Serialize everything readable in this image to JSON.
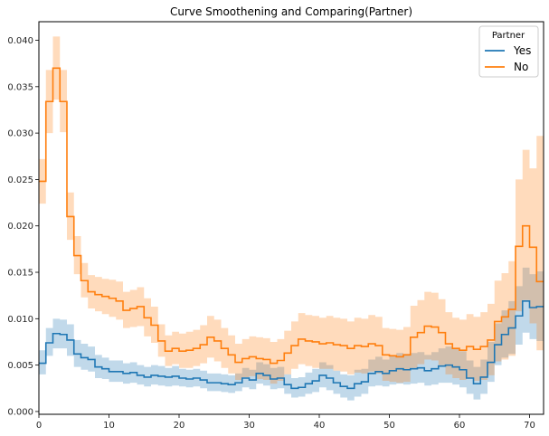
{
  "chart_data": {
    "type": "line",
    "title": "Curve Smoothening and Comparing(Partner)",
    "xlabel": "",
    "ylabel": "",
    "xlim": [
      0,
      72
    ],
    "ylim": [
      -0.0003,
      0.042
    ],
    "xticks": [
      0,
      10,
      20,
      30,
      40,
      50,
      60,
      70
    ],
    "yticks": [
      0.0,
      0.005,
      0.01,
      0.015,
      0.02,
      0.025,
      0.03,
      0.035,
      0.04
    ],
    "ytick_labels": [
      "0.000",
      "0.005",
      "0.010",
      "0.015",
      "0.020",
      "0.025",
      "0.030",
      "0.035",
      "0.040"
    ],
    "grid": false,
    "legend": {
      "title": "Partner",
      "placement": "top-right"
    },
    "series": [
      {
        "name": "Yes",
        "color": "#1f77b4",
        "x": [
          0,
          1,
          2,
          3,
          4,
          5,
          6,
          7,
          8,
          9,
          10,
          11,
          12,
          13,
          14,
          15,
          16,
          17,
          18,
          19,
          20,
          21,
          22,
          23,
          24,
          25,
          26,
          27,
          28,
          29,
          30,
          31,
          32,
          33,
          34,
          35,
          36,
          37,
          38,
          39,
          40,
          41,
          42,
          43,
          44,
          45,
          46,
          47,
          48,
          49,
          50,
          51,
          52,
          53,
          54,
          55,
          56,
          57,
          58,
          59,
          60,
          61,
          62,
          63,
          64,
          65,
          66,
          67,
          68,
          69,
          70,
          71,
          72
        ],
        "values": [
          0.0052,
          0.0074,
          0.0084,
          0.0083,
          0.0077,
          0.0062,
          0.0058,
          0.0056,
          0.0048,
          0.0046,
          0.0043,
          0.0043,
          0.0041,
          0.0042,
          0.0039,
          0.0037,
          0.0039,
          0.0038,
          0.0037,
          0.0038,
          0.0036,
          0.0035,
          0.0036,
          0.0034,
          0.0031,
          0.0031,
          0.003,
          0.0029,
          0.0031,
          0.0036,
          0.0034,
          0.0041,
          0.0039,
          0.0035,
          0.0036,
          0.0029,
          0.0025,
          0.0026,
          0.003,
          0.0033,
          0.0039,
          0.0036,
          0.0031,
          0.0027,
          0.0025,
          0.003,
          0.0032,
          0.0041,
          0.0043,
          0.0041,
          0.0044,
          0.0046,
          0.0045,
          0.0046,
          0.0047,
          0.0044,
          0.0046,
          0.0049,
          0.005,
          0.0048,
          0.0045,
          0.0036,
          0.003,
          0.0037,
          0.0053,
          0.0072,
          0.0083,
          0.009,
          0.0103,
          0.0119,
          0.0112,
          0.0113,
          0.0113
        ],
        "lower": [
          0.004,
          0.006,
          0.0068,
          0.0068,
          0.006,
          0.0048,
          0.0045,
          0.0043,
          0.0036,
          0.0035,
          0.0032,
          0.0032,
          0.003,
          0.0031,
          0.0029,
          0.0027,
          0.0029,
          0.0028,
          0.0027,
          0.0028,
          0.0027,
          0.0026,
          0.0027,
          0.0025,
          0.0022,
          0.0022,
          0.0021,
          0.002,
          0.0022,
          0.0026,
          0.0024,
          0.003,
          0.0028,
          0.0024,
          0.0025,
          0.0019,
          0.0015,
          0.0016,
          0.0019,
          0.0021,
          0.0026,
          0.0023,
          0.0019,
          0.0015,
          0.0012,
          0.0016,
          0.0019,
          0.0027,
          0.0028,
          0.0027,
          0.0029,
          0.003,
          0.0029,
          0.003,
          0.0031,
          0.0028,
          0.0029,
          0.0031,
          0.0031,
          0.0029,
          0.0026,
          0.0019,
          0.0013,
          0.0019,
          0.0032,
          0.005,
          0.0058,
          0.0062,
          0.0072,
          0.0085,
          0.0078,
          0.0076,
          0.0076
        ],
        "upper": [
          0.0066,
          0.009,
          0.01,
          0.0099,
          0.0094,
          0.0077,
          0.0073,
          0.007,
          0.0061,
          0.0058,
          0.0055,
          0.0055,
          0.0052,
          0.0053,
          0.005,
          0.0048,
          0.005,
          0.0049,
          0.0047,
          0.0049,
          0.0046,
          0.0045,
          0.0046,
          0.0044,
          0.0041,
          0.0041,
          0.004,
          0.0039,
          0.0041,
          0.0047,
          0.0045,
          0.0053,
          0.0051,
          0.0047,
          0.0048,
          0.004,
          0.0036,
          0.0037,
          0.0042,
          0.0046,
          0.0053,
          0.005,
          0.0044,
          0.004,
          0.0039,
          0.0045,
          0.0046,
          0.0056,
          0.0059,
          0.0056,
          0.006,
          0.0063,
          0.0062,
          0.0063,
          0.0064,
          0.0061,
          0.0064,
          0.0068,
          0.007,
          0.0068,
          0.0065,
          0.0055,
          0.0048,
          0.0056,
          0.0075,
          0.0095,
          0.0109,
          0.0119,
          0.0135,
          0.0155,
          0.0148,
          0.0151,
          0.0151
        ]
      },
      {
        "name": "No",
        "color": "#ff7f0e",
        "x": [
          0,
          1,
          2,
          3,
          4,
          5,
          6,
          7,
          8,
          9,
          10,
          11,
          12,
          13,
          14,
          15,
          16,
          17,
          18,
          19,
          20,
          21,
          22,
          23,
          24,
          25,
          26,
          27,
          28,
          29,
          30,
          31,
          32,
          33,
          34,
          35,
          36,
          37,
          38,
          39,
          40,
          41,
          42,
          43,
          44,
          45,
          46,
          47,
          48,
          49,
          50,
          51,
          52,
          53,
          54,
          55,
          56,
          57,
          58,
          59,
          60,
          61,
          62,
          63,
          64,
          65,
          66,
          67,
          68,
          69,
          70,
          71,
          72
        ],
        "values": [
          0.0248,
          0.0334,
          0.037,
          0.0334,
          0.021,
          0.0168,
          0.0141,
          0.0129,
          0.0126,
          0.0124,
          0.0122,
          0.0119,
          0.0109,
          0.0111,
          0.0113,
          0.0101,
          0.0093,
          0.0076,
          0.0065,
          0.0068,
          0.0065,
          0.0066,
          0.0068,
          0.0072,
          0.008,
          0.0076,
          0.0068,
          0.0061,
          0.0053,
          0.0057,
          0.0059,
          0.0057,
          0.0056,
          0.0052,
          0.0055,
          0.0063,
          0.0071,
          0.0078,
          0.0076,
          0.0075,
          0.0073,
          0.0074,
          0.0072,
          0.0071,
          0.0068,
          0.0071,
          0.007,
          0.0073,
          0.0071,
          0.0061,
          0.006,
          0.0059,
          0.0061,
          0.008,
          0.0085,
          0.0092,
          0.0091,
          0.0085,
          0.0073,
          0.0068,
          0.0066,
          0.007,
          0.0067,
          0.007,
          0.0077,
          0.0097,
          0.0102,
          0.011,
          0.0178,
          0.02,
          0.0177,
          0.014,
          0.014
        ],
        "lower": [
          0.0224,
          0.03,
          0.0336,
          0.0301,
          0.0185,
          0.0148,
          0.0123,
          0.0111,
          0.0108,
          0.0105,
          0.0102,
          0.0099,
          0.009,
          0.0091,
          0.0092,
          0.0081,
          0.0074,
          0.0059,
          0.0049,
          0.0051,
          0.0047,
          0.0047,
          0.0049,
          0.0052,
          0.0058,
          0.0054,
          0.0047,
          0.0041,
          0.0034,
          0.0037,
          0.0038,
          0.0035,
          0.0034,
          0.003,
          0.0033,
          0.004,
          0.0046,
          0.0051,
          0.0049,
          0.0047,
          0.0046,
          0.0046,
          0.0044,
          0.0043,
          0.004,
          0.0042,
          0.0041,
          0.0043,
          0.0041,
          0.0033,
          0.0032,
          0.0031,
          0.0032,
          0.0047,
          0.0051,
          0.0056,
          0.0055,
          0.005,
          0.004,
          0.0036,
          0.0034,
          0.0036,
          0.0033,
          0.0034,
          0.0039,
          0.0054,
          0.0056,
          0.006,
          0.0108,
          0.012,
          0.0095,
          0.0066,
          0.0066
        ],
        "upper": [
          0.0272,
          0.0368,
          0.0404,
          0.0368,
          0.0236,
          0.0189,
          0.016,
          0.0147,
          0.0145,
          0.0143,
          0.0142,
          0.014,
          0.0129,
          0.0131,
          0.0134,
          0.0122,
          0.0113,
          0.0094,
          0.0082,
          0.0086,
          0.0084,
          0.0086,
          0.0088,
          0.0093,
          0.0103,
          0.0099,
          0.009,
          0.0082,
          0.0073,
          0.0078,
          0.0081,
          0.008,
          0.0079,
          0.0075,
          0.0078,
          0.0087,
          0.0097,
          0.0106,
          0.0104,
          0.0103,
          0.0101,
          0.0103,
          0.0101,
          0.01,
          0.0097,
          0.0101,
          0.01,
          0.0104,
          0.0102,
          0.009,
          0.0089,
          0.0088,
          0.0091,
          0.0114,
          0.012,
          0.0129,
          0.0128,
          0.0121,
          0.0107,
          0.0101,
          0.0099,
          0.0105,
          0.0102,
          0.0107,
          0.0116,
          0.0141,
          0.0149,
          0.0162,
          0.025,
          0.0282,
          0.0262,
          0.0297,
          0.0297
        ]
      }
    ]
  }
}
